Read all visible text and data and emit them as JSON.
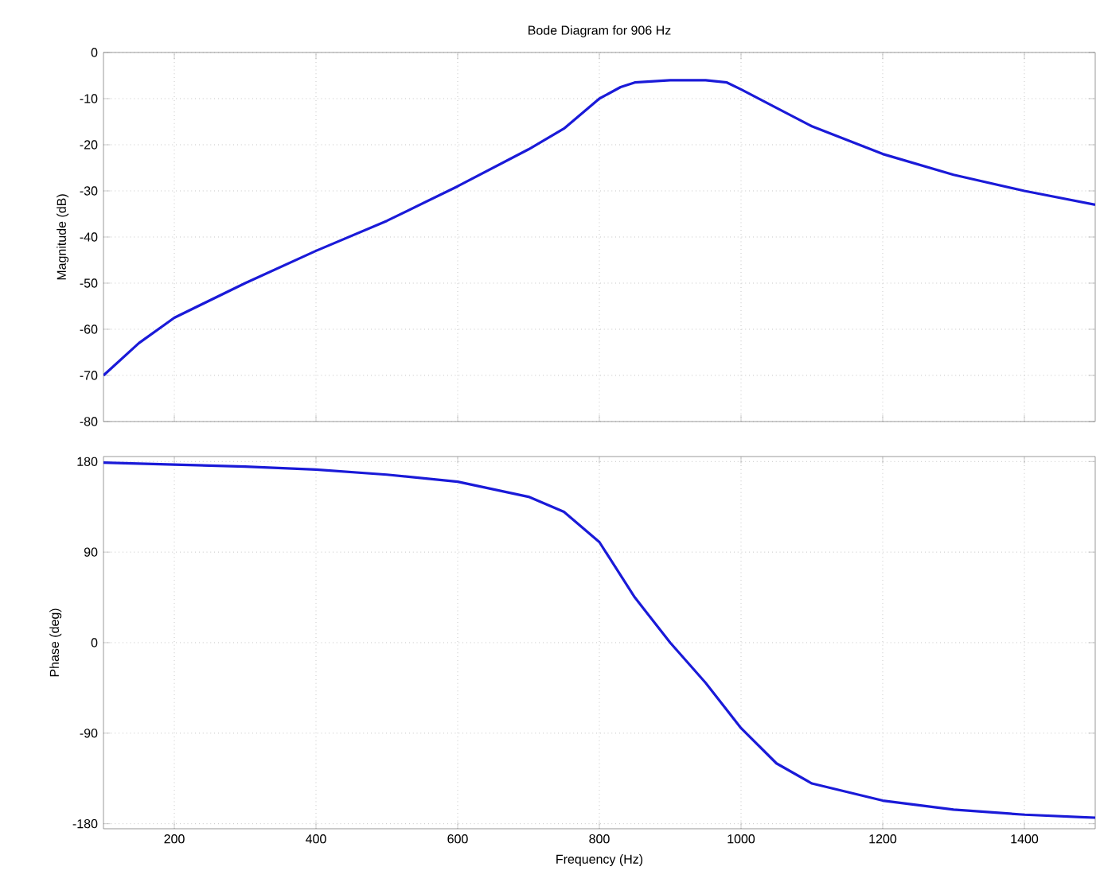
{
  "chart_data": [
    {
      "type": "line",
      "title": "Bode Diagram for 906 Hz",
      "ylabel": "Magnitude (dB)",
      "xlim": [
        100,
        1500
      ],
      "xticks": [
        200,
        400,
        600,
        800,
        1000,
        1200,
        1400
      ],
      "ylim": [
        -80,
        0
      ],
      "yticks": [
        -80,
        -70,
        -60,
        -50,
        -40,
        -30,
        -20,
        -10,
        0
      ],
      "grid": true,
      "tick_labels": "y",
      "line_style": "solid",
      "marker": "none",
      "x": [
        100,
        150,
        200,
        300,
        400,
        500,
        600,
        700,
        750,
        800,
        830,
        850,
        900,
        950,
        980,
        1000,
        1050,
        1100,
        1200,
        1300,
        1400,
        1500
      ],
      "series": [
        {
          "color": "#1a1ad8",
          "values": [
            -70,
            -63,
            -57.5,
            -50,
            -43,
            -36.5,
            -29,
            -21,
            -16.5,
            -10,
            -7.5,
            -6.5,
            -6,
            -6,
            -6.5,
            -8,
            -12,
            -16,
            -22,
            -26.5,
            -30,
            -33
          ]
        }
      ]
    },
    {
      "type": "line",
      "xlabel": "Frequency (Hz)",
      "ylabel": "Phase (deg)",
      "xlim": [
        100,
        1500
      ],
      "xticks": [
        200,
        400,
        600,
        800,
        1000,
        1200,
        1400
      ],
      "ylim": [
        -185,
        185
      ],
      "yticks": [
        -180,
        -90,
        0,
        90,
        180
      ],
      "grid": true,
      "line_style": "solid",
      "marker": "none",
      "x": [
        100,
        200,
        300,
        400,
        500,
        600,
        700,
        750,
        800,
        850,
        900,
        950,
        1000,
        1050,
        1100,
        1200,
        1300,
        1400,
        1500
      ],
      "series": [
        {
          "color": "#1a1ad8",
          "values": [
            179,
            177,
            175,
            172,
            167,
            160,
            145,
            130,
            100,
            45,
            0,
            -40,
            -85,
            -120,
            -140,
            -157,
            -166,
            -171,
            -174
          ]
        }
      ]
    }
  ]
}
